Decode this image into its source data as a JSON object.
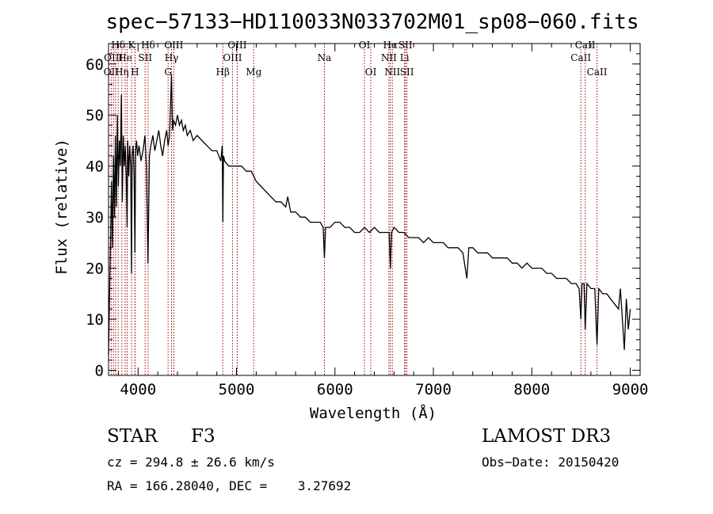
{
  "chart_data": {
    "type": "line",
    "title": "spec−57133−HD110033N033702M01_sp08−060.fits",
    "xlabel": "Wavelength (Å)",
    "ylabel": "Flux (relative)",
    "xlim": [
      3700,
      9100
    ],
    "ylim": [
      -1,
      64
    ],
    "xticks": [
      4000,
      5000,
      6000,
      7000,
      8000,
      9000
    ],
    "yticks": [
      0,
      10,
      20,
      30,
      40,
      50,
      60
    ],
    "series": [
      {
        "name": "spectrum",
        "x": [
          3700,
          3710,
          3720,
          3730,
          3740,
          3750,
          3760,
          3770,
          3780,
          3790,
          3800,
          3810,
          3820,
          3830,
          3840,
          3850,
          3860,
          3870,
          3880,
          3889,
          3895,
          3905,
          3915,
          3925,
          3933,
          3940,
          3950,
          3960,
          3968,
          3975,
          3985,
          3995,
          4010,
          4030,
          4050,
          4070,
          4085,
          4101,
          4115,
          4130,
          4150,
          4170,
          4190,
          4210,
          4230,
          4250,
          4270,
          4290,
          4305,
          4320,
          4340,
          4350,
          4360,
          4380,
          4400,
          4420,
          4440,
          4460,
          4480,
          4500,
          4530,
          4560,
          4600,
          4650,
          4700,
          4750,
          4800,
          4840,
          4855,
          4861,
          4868,
          4880,
          4920,
          4960,
          5000,
          5050,
          5100,
          5150,
          5200,
          5250,
          5300,
          5350,
          5400,
          5450,
          5500,
          5520,
          5550,
          5600,
          5650,
          5700,
          5750,
          5800,
          5850,
          5880,
          5893,
          5905,
          5950,
          6000,
          6050,
          6100,
          6150,
          6200,
          6250,
          6300,
          6350,
          6400,
          6450,
          6500,
          6550,
          6563,
          6575,
          6600,
          6650,
          6700,
          6750,
          6800,
          6850,
          6900,
          6950,
          7000,
          7050,
          7100,
          7150,
          7200,
          7250,
          7300,
          7340,
          7360,
          7400,
          7450,
          7500,
          7550,
          7600,
          7650,
          7700,
          7750,
          7800,
          7850,
          7900,
          7950,
          8000,
          8050,
          8100,
          8150,
          8200,
          8250,
          8300,
          8350,
          8400,
          8450,
          8480,
          8498,
          8510,
          8530,
          8542,
          8560,
          8600,
          8640,
          8662,
          8680,
          8720,
          8760,
          8800,
          8840,
          8880,
          8900,
          8920,
          8940,
          8960,
          8980,
          9000
        ],
        "y": [
          3,
          14,
          25,
          37,
          24,
          42,
          30,
          46,
          32,
          50,
          36,
          45,
          40,
          54,
          33,
          46,
          40,
          44,
          38,
          28,
          45,
          38,
          44,
          40,
          19,
          42,
          44,
          38,
          23,
          43,
          45,
          42,
          44,
          41,
          43,
          46,
          40,
          21,
          42,
          44,
          46,
          43,
          45,
          47,
          44,
          42,
          45,
          47,
          44,
          46,
          58,
          47,
          49,
          48,
          50,
          48,
          49,
          47,
          48,
          46,
          47,
          45,
          46,
          45,
          44,
          43,
          43,
          41,
          44,
          29,
          42,
          41,
          40,
          40,
          40,
          40,
          39,
          39,
          37,
          36,
          35,
          34,
          33,
          33,
          32,
          34,
          31,
          31,
          30,
          30,
          29,
          29,
          29,
          28,
          22,
          28,
          28,
          29,
          29,
          28,
          28,
          27,
          27,
          28,
          27,
          28,
          27,
          27,
          27,
          20,
          27,
          28,
          27,
          27,
          26,
          26,
          26,
          25,
          26,
          25,
          25,
          25,
          24,
          24,
          24,
          23,
          18,
          24,
          24,
          23,
          23,
          23,
          22,
          22,
          22,
          22,
          21,
          21,
          20,
          21,
          20,
          20,
          20,
          19,
          19,
          18,
          18,
          18,
          17,
          17,
          16,
          10,
          17,
          17,
          8,
          17,
          16,
          16,
          5,
          16,
          15,
          15,
          14,
          13,
          12,
          16,
          10,
          4,
          14,
          8,
          12
        ]
      }
    ],
    "lines": [
      {
        "wl": 3727,
        "label": "OII",
        "row": 3
      },
      {
        "wl": 3750,
        "label": "OIII",
        "row": 2
      },
      {
        "wl": 3771,
        "label": "",
        "row": 0
      },
      {
        "wl": 3798,
        "label": "Hδ",
        "row": 1
      },
      {
        "wl": 3835,
        "label": "Hη",
        "row": 3
      },
      {
        "wl": 3869,
        "label": "He",
        "row": 2
      },
      {
        "wl": 3889,
        "label": "",
        "row": 0
      },
      {
        "wl": 3934,
        "label": "K",
        "row": 1
      },
      {
        "wl": 3968,
        "label": "H",
        "row": 3
      },
      {
        "wl": 3970,
        "label": "",
        "row": 0
      },
      {
        "wl": 4072,
        "label": "SII",
        "row": 2
      },
      {
        "wl": 4102,
        "label": "Hδ",
        "row": 1
      },
      {
        "wl": 4305,
        "label": "G",
        "row": 3
      },
      {
        "wl": 4340,
        "label": "Hγ",
        "row": 2
      },
      {
        "wl": 4363,
        "label": "OIII",
        "row": 1
      },
      {
        "wl": 4861,
        "label": "Hβ",
        "row": 3
      },
      {
        "wl": 4959,
        "label": "OIII",
        "row": 2
      },
      {
        "wl": 5007,
        "label": "OIII",
        "row": 1
      },
      {
        "wl": 5175,
        "label": "Mg",
        "row": 3
      },
      {
        "wl": 5893,
        "label": "Na",
        "row": 2
      },
      {
        "wl": 6300,
        "label": "OI",
        "row": 1
      },
      {
        "wl": 6364,
        "label": "OI",
        "row": 3
      },
      {
        "wl": 6548,
        "label": "NII",
        "row": 2
      },
      {
        "wl": 6563,
        "label": "Hα",
        "row": 1
      },
      {
        "wl": 6583,
        "label": "NII",
        "row": 3
      },
      {
        "wl": 6707,
        "label": "Li",
        "row": 2
      },
      {
        "wl": 6716,
        "label": "SII",
        "row": 1
      },
      {
        "wl": 6731,
        "label": "SII",
        "row": 3
      },
      {
        "wl": 8498,
        "label": "CaII",
        "row": 2
      },
      {
        "wl": 8542,
        "label": "CaII",
        "row": 1
      },
      {
        "wl": 8662,
        "label": "CaII",
        "row": 3
      }
    ]
  },
  "info": {
    "class": "STAR",
    "subclass": "F3",
    "survey": "LAMOST DR3",
    "cz": "cz = 294.8 ± 26.6 km/s",
    "obs_date": "Obs−Date: 20150420",
    "coords": "RA = 166.28040, DEC =    3.27692"
  },
  "colors": {
    "axis": "#000000",
    "spectrum": "#000000",
    "line_marker": "#a00000"
  }
}
